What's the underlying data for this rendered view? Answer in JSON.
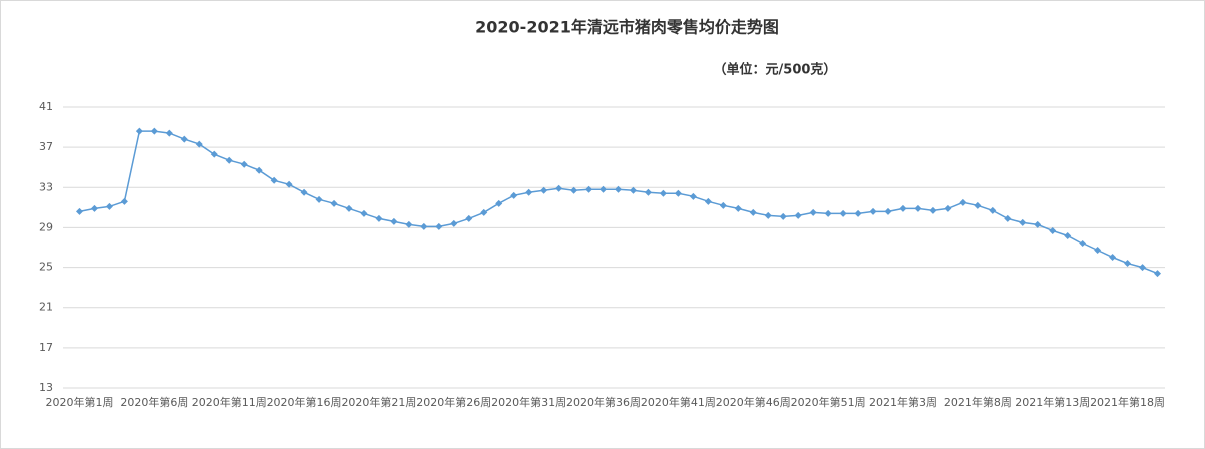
{
  "chart_data": {
    "type": "line",
    "title": "2020-2021年清远市猪肉零售均价走势图",
    "subtitle": "（单位：元/500克）",
    "categories": [
      "2020年第1周",
      null,
      null,
      null,
      null,
      "2020年第6周",
      null,
      null,
      null,
      null,
      "2020年第11周",
      null,
      null,
      null,
      null,
      "2020年第16周",
      null,
      null,
      null,
      null,
      "2020年第21周",
      null,
      null,
      null,
      null,
      "2020年第26周",
      null,
      null,
      null,
      null,
      "2020年第31周",
      null,
      null,
      null,
      null,
      "2020年第36周",
      null,
      null,
      null,
      null,
      "2020年第41周",
      null,
      null,
      null,
      null,
      "2020年第46周",
      null,
      null,
      null,
      null,
      "2020年第51周",
      null,
      null,
      null,
      null,
      "2021年第3周",
      null,
      null,
      null,
      null,
      "2021年第8周",
      null,
      null,
      null,
      null,
      "2021年第13周",
      null,
      null,
      null,
      null,
      "2021年第18周",
      null,
      null
    ],
    "series": [
      {
        "name": "猪肉零售均价",
        "color": "#5b9bd5",
        "values": [
          30.6,
          30.9,
          31.1,
          31.6,
          38.6,
          38.6,
          38.4,
          37.8,
          37.3,
          36.3,
          35.7,
          35.3,
          34.7,
          33.7,
          33.3,
          32.5,
          31.8,
          31.4,
          30.9,
          30.4,
          29.9,
          29.6,
          29.3,
          29.1,
          29.1,
          29.4,
          29.9,
          30.5,
          31.4,
          32.2,
          32.5,
          32.7,
          32.9,
          32.7,
          32.8,
          32.8,
          32.8,
          32.7,
          32.5,
          32.4,
          32.4,
          32.1,
          31.6,
          31.2,
          30.9,
          30.5,
          30.2,
          30.1,
          30.2,
          30.5,
          30.4,
          30.4,
          30.4,
          30.6,
          30.6,
          30.9,
          30.9,
          30.7,
          30.9,
          31.5,
          31.2,
          30.7,
          29.9,
          29.5,
          29.3,
          28.7,
          28.2,
          27.4,
          26.7,
          26.0,
          25.4,
          25.0,
          24.4
        ]
      }
    ],
    "ylim": [
      13,
      41
    ],
    "yticks": [
      13,
      17,
      21,
      25,
      29,
      33,
      37,
      41
    ],
    "grid": true
  }
}
